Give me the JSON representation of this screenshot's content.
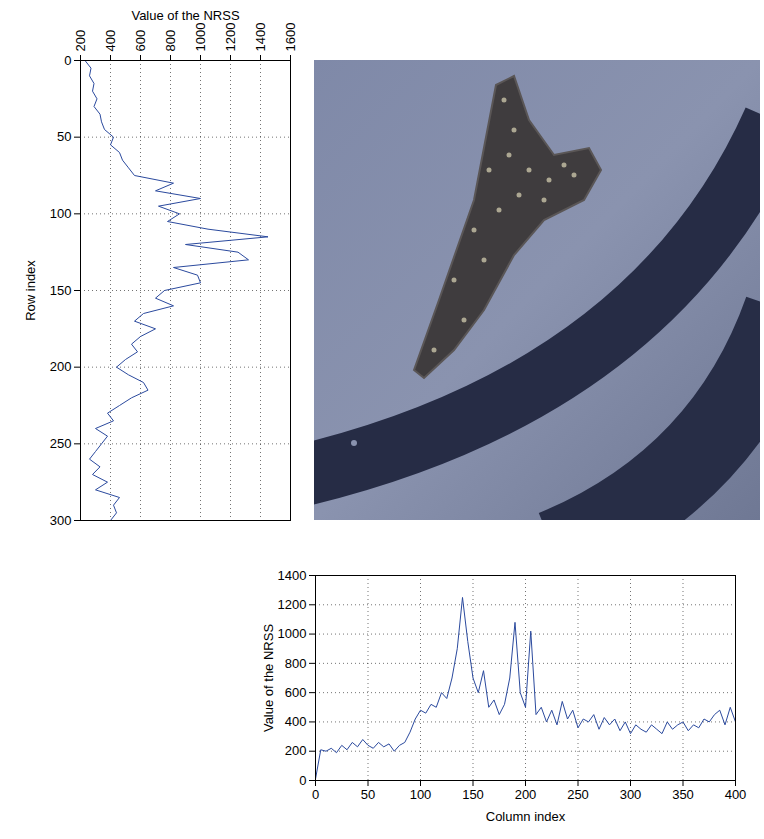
{
  "chart_data": [
    {
      "type": "line",
      "orientation": "horizontal",
      "xlabel": "Value of the NRSS",
      "ylabel": "Row index",
      "y": [
        0,
        5,
        10,
        15,
        20,
        25,
        30,
        35,
        40,
        45,
        50,
        55,
        60,
        65,
        70,
        75,
        80,
        85,
        90,
        95,
        100,
        105,
        110,
        115,
        120,
        125,
        130,
        135,
        140,
        145,
        150,
        155,
        160,
        165,
        170,
        175,
        180,
        185,
        190,
        195,
        200,
        205,
        210,
        215,
        220,
        225,
        230,
        235,
        240,
        245,
        250,
        255,
        260,
        265,
        270,
        275,
        280,
        285,
        290,
        295,
        300
      ],
      "values": [
        230,
        270,
        260,
        290,
        280,
        310,
        290,
        330,
        340,
        360,
        420,
        400,
        460,
        480,
        520,
        560,
        820,
        700,
        1000,
        720,
        860,
        780,
        1050,
        1450,
        900,
        1250,
        1320,
        820,
        980,
        1000,
        760,
        700,
        820,
        620,
        560,
        700,
        600,
        540,
        580,
        500,
        440,
        520,
        620,
        650,
        540,
        460,
        380,
        420,
        300,
        380,
        340,
        300,
        260,
        330,
        280,
        380,
        300,
        460,
        420,
        440,
        400
      ],
      "color": "#2b4a9e",
      "xlim": [
        200,
        1600
      ],
      "xticks": [
        200,
        400,
        600,
        800,
        1000,
        1200,
        1400,
        1600
      ],
      "ylim": [
        300,
        0
      ],
      "yticks": [
        0,
        50,
        100,
        150,
        200,
        250,
        300
      ],
      "grid": true
    },
    {
      "type": "line",
      "xlabel": "Column index",
      "ylabel": "Value of the NRSS",
      "x": [
        0,
        5,
        10,
        15,
        20,
        25,
        30,
        35,
        40,
        45,
        50,
        55,
        60,
        65,
        70,
        75,
        80,
        85,
        90,
        95,
        100,
        105,
        110,
        115,
        120,
        125,
        130,
        135,
        140,
        145,
        150,
        155,
        160,
        165,
        170,
        175,
        180,
        185,
        190,
        195,
        200,
        205,
        210,
        215,
        220,
        225,
        230,
        235,
        240,
        245,
        250,
        255,
        260,
        265,
        270,
        275,
        280,
        285,
        290,
        295,
        300,
        305,
        310,
        315,
        320,
        325,
        330,
        335,
        340,
        345,
        350,
        355,
        360,
        365,
        370,
        375,
        380,
        385,
        390,
        395,
        400
      ],
      "values": [
        10,
        210,
        200,
        220,
        190,
        240,
        210,
        260,
        230,
        280,
        240,
        220,
        260,
        230,
        250,
        200,
        240,
        260,
        330,
        420,
        480,
        460,
        520,
        500,
        600,
        560,
        700,
        900,
        1250,
        950,
        700,
        600,
        750,
        500,
        550,
        450,
        520,
        700,
        1080,
        600,
        500,
        1020,
        450,
        500,
        400,
        480,
        380,
        540,
        420,
        480,
        360,
        420,
        400,
        450,
        350,
        430,
        380,
        420,
        340,
        400,
        320,
        380,
        350,
        330,
        380,
        350,
        320,
        400,
        350,
        380,
        400,
        340,
        380,
        360,
        420,
        400,
        450,
        480,
        380,
        500,
        400
      ],
      "color": "#2b4a9e",
      "xlim": [
        0,
        400
      ],
      "xticks": [
        0,
        50,
        100,
        150,
        200,
        250,
        300,
        350,
        400
      ],
      "ylim": [
        0,
        1400
      ],
      "yticks": [
        0,
        200,
        400,
        600,
        800,
        1000,
        1200,
        1400
      ],
      "grid": true
    }
  ]
}
